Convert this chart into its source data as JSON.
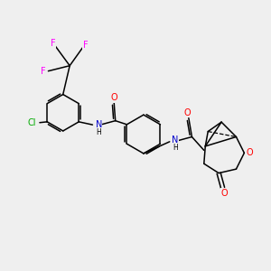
{
  "background_color": "#efefef",
  "atom_colors": {
    "O": "#ff0000",
    "N": "#0000cc",
    "Cl": "#00aa00",
    "F": "#ff00ff",
    "C": "#000000"
  },
  "lw": 1.1,
  "fs": 7.0,
  "fs_small": 5.5
}
